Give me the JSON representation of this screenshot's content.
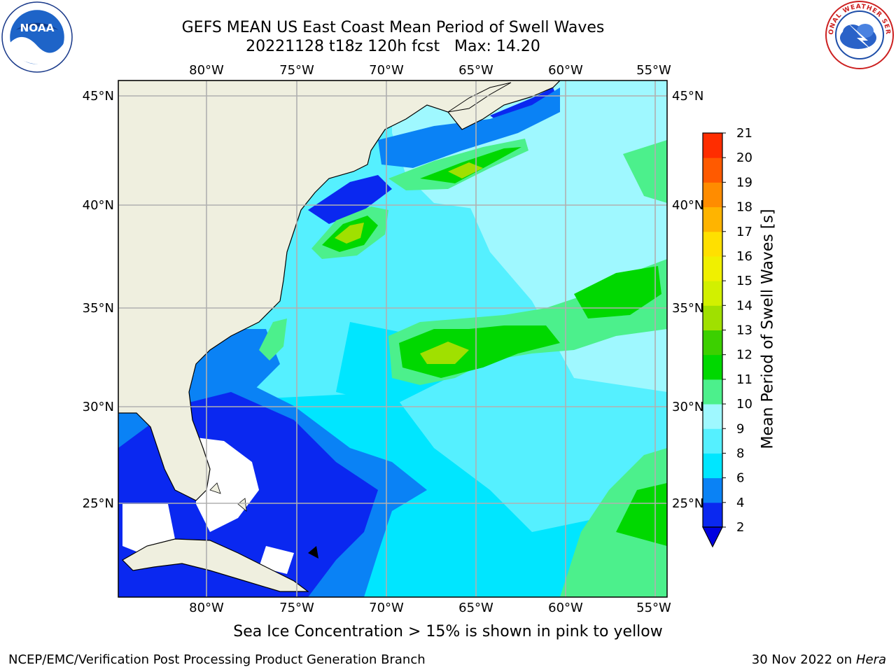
{
  "title": {
    "line1": "GEFS MEAN US East Coast Mean Period of Swell Waves",
    "line2": "20221128 t18z 120h fcst   Max: 14.20"
  },
  "map": {
    "lon_labels": [
      "80°W",
      "75°W",
      "70°W",
      "65°W",
      "60°W",
      "55°W"
    ],
    "lat_labels": [
      "45°N",
      "40°N",
      "35°N",
      "30°N",
      "25°N"
    ],
    "land_color": "#efefdf",
    "grid_color": "#b0b0b0"
  },
  "colorbar": {
    "label": "Mean Period of Swell Waves [s]",
    "tick_labels": [
      "2",
      "4",
      "6",
      "8",
      "9",
      "10",
      "11",
      "12",
      "13",
      "14",
      "15",
      "16",
      "17",
      "18",
      "19",
      "20",
      "21"
    ],
    "colors": [
      "#0a28f0",
      "#0a82f5",
      "#00e6ff",
      "#55f0ff",
      "#9ff8ff",
      "#4cf08c",
      "#00d800",
      "#3cd000",
      "#a0e000",
      "#d2f000",
      "#f0f000",
      "#ffe000",
      "#ffb400",
      "#ff8c00",
      "#ff5a00",
      "#ff2d00"
    ],
    "extend_color": "#0000e0"
  },
  "caption": "Sea Ice Concentration > 15% is shown in pink to yellow",
  "footer": {
    "left": "NCEP/EMC/Verification Post Processing Product Generation Branch",
    "right_date": "30 Nov 2022 on",
    "right_machine": "Hera"
  },
  "logos": {
    "noaa_text": "NOAA",
    "nws_text": "NATIONAL WEATHER SERVICE"
  }
}
